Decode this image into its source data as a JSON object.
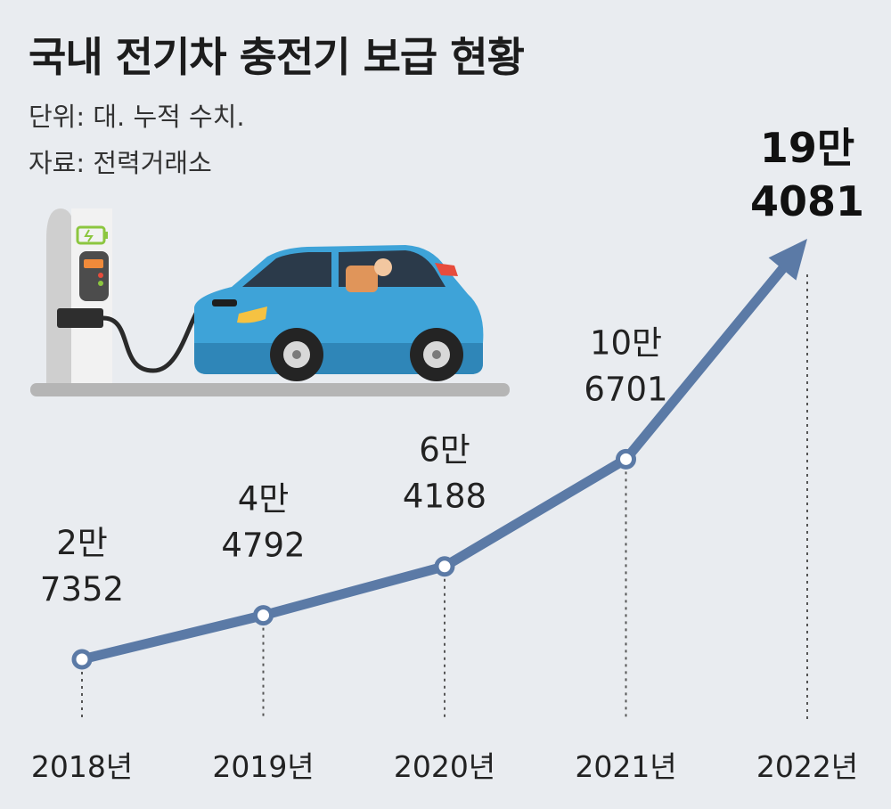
{
  "header": {
    "title": "국내 전기차 충전기 보급 현황",
    "unit_note": "단위: 대. 누적 수치.",
    "source_note": "자료: 전력거래소"
  },
  "colors": {
    "line": "#5b7aa6",
    "background": "#e9ecf0",
    "car_body": "#3ea3d8"
  },
  "illustration": "electric-car-charging",
  "chart_data": {
    "type": "line",
    "title": "국내 전기차 충전기 보급 현황",
    "xlabel": "",
    "ylabel": "",
    "categories": [
      "2018년",
      "2019년",
      "2020년",
      "2021년",
      "2022년"
    ],
    "values": [
      27352,
      44792,
      64188,
      106701,
      194081
    ],
    "labels": [
      [
        "2만",
        "7352"
      ],
      [
        "4만",
        "4792"
      ],
      [
        "6만",
        "4188"
      ],
      [
        "10만",
        "6701"
      ],
      [
        "19만",
        "4081"
      ]
    ],
    "ylim": [
      27352,
      194081
    ],
    "grid": false,
    "final_point_arrow": true
  }
}
